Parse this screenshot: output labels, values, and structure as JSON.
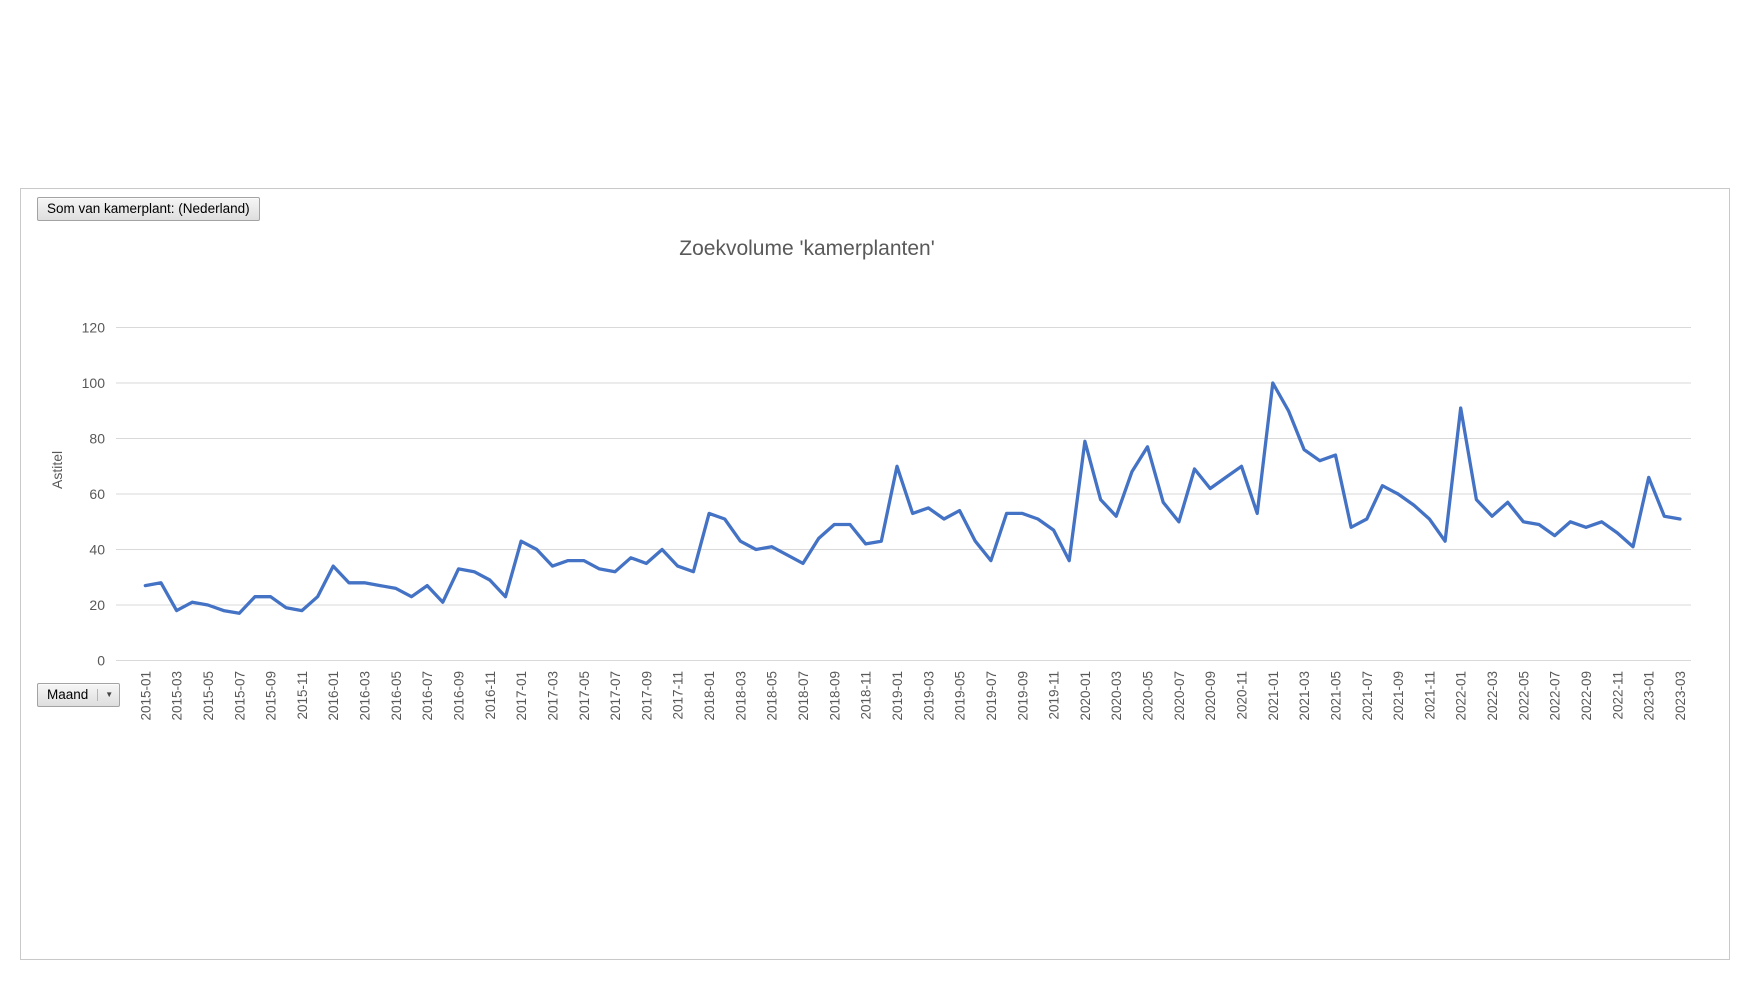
{
  "pivot_chart": {
    "value_button_label": "Som van kamerplant: (Nederland)",
    "axis_button_label": "Maand",
    "axis_button_icon": "▼"
  },
  "colors": {
    "series_line": "#4472C4",
    "gridline": "#D9D9D9",
    "axis_text": "#595959",
    "title_text": "#595959"
  },
  "chart_data": {
    "type": "line",
    "title": "Zoekvolume 'kamerplanten'",
    "xlabel": "",
    "ylabel": "Astitel",
    "ylim": [
      0,
      120
    ],
    "yticks": [
      0,
      20,
      40,
      60,
      80,
      100,
      120
    ],
    "grid": true,
    "legend": "none",
    "xtick_rotation": -90,
    "x": [
      "2015-01",
      "2015-02",
      "2015-03",
      "2015-04",
      "2015-05",
      "2015-06",
      "2015-07",
      "2015-08",
      "2015-09",
      "2015-10",
      "2015-11",
      "2015-12",
      "2016-01",
      "2016-02",
      "2016-03",
      "2016-04",
      "2016-05",
      "2016-06",
      "2016-07",
      "2016-08",
      "2016-09",
      "2016-10",
      "2016-11",
      "2016-12",
      "2017-01",
      "2017-02",
      "2017-03",
      "2017-04",
      "2017-05",
      "2017-06",
      "2017-07",
      "2017-08",
      "2017-09",
      "2017-10",
      "2017-11",
      "2017-12",
      "2018-01",
      "2018-02",
      "2018-03",
      "2018-04",
      "2018-05",
      "2018-06",
      "2018-07",
      "2018-08",
      "2018-09",
      "2018-10",
      "2018-11",
      "2018-12",
      "2019-01",
      "2019-02",
      "2019-03",
      "2019-04",
      "2019-05",
      "2019-06",
      "2019-07",
      "2019-08",
      "2019-09",
      "2019-10",
      "2019-11",
      "2019-12",
      "2020-01",
      "2020-02",
      "2020-03",
      "2020-04",
      "2020-05",
      "2020-06",
      "2020-07",
      "2020-08",
      "2020-09",
      "2020-10",
      "2020-11",
      "2020-12",
      "2021-01",
      "2021-02",
      "2021-03",
      "2021-04",
      "2021-05",
      "2021-06",
      "2021-07",
      "2021-08",
      "2021-09",
      "2021-10",
      "2021-11",
      "2021-12",
      "2022-01",
      "2022-02",
      "2022-03",
      "2022-04",
      "2022-05",
      "2022-06",
      "2022-07",
      "2022-08",
      "2022-09",
      "2022-10",
      "2022-11",
      "2022-12",
      "2023-01",
      "2023-02",
      "2023-03"
    ],
    "values": [
      27,
      28,
      18,
      21,
      20,
      18,
      17,
      23,
      23,
      19,
      18,
      23,
      34,
      28,
      28,
      27,
      26,
      23,
      27,
      21,
      33,
      32,
      29,
      23,
      43,
      40,
      34,
      36,
      36,
      33,
      32,
      37,
      35,
      40,
      34,
      32,
      53,
      51,
      43,
      40,
      41,
      38,
      35,
      44,
      49,
      49,
      42,
      43,
      70,
      53,
      55,
      51,
      54,
      43,
      36,
      53,
      53,
      51,
      47,
      36,
      79,
      58,
      52,
      68,
      77,
      57,
      50,
      69,
      62,
      66,
      70,
      53,
      100,
      90,
      76,
      72,
      74,
      48,
      51,
      63,
      60,
      56,
      51,
      43,
      91,
      58,
      52,
      57,
      50,
      49,
      45,
      50,
      48,
      50,
      46,
      41,
      66,
      52,
      51
    ],
    "xtick_labels": [
      "2015-01",
      "2015-03",
      "2015-05",
      "2015-07",
      "2015-09",
      "2015-11",
      "2016-01",
      "2016-03",
      "2016-05",
      "2016-07",
      "2016-09",
      "2016-11",
      "2017-01",
      "2017-03",
      "2017-05",
      "2017-07",
      "2017-09",
      "2017-11",
      "2018-01",
      "2018-03",
      "2018-05",
      "2018-07",
      "2018-09",
      "2018-11",
      "2019-01",
      "2019-03",
      "2019-05",
      "2019-07",
      "2019-09",
      "2019-11",
      "2020-01",
      "2020-03",
      "2020-05",
      "2020-07",
      "2020-09",
      "2020-11",
      "2021-01",
      "2021-03",
      "2021-05",
      "2021-07",
      "2021-09",
      "2021-11",
      "2022-01",
      "2022-03",
      "2022-05",
      "2022-07",
      "2022-09",
      "2022-11",
      "2023-01",
      "2023-03"
    ]
  }
}
